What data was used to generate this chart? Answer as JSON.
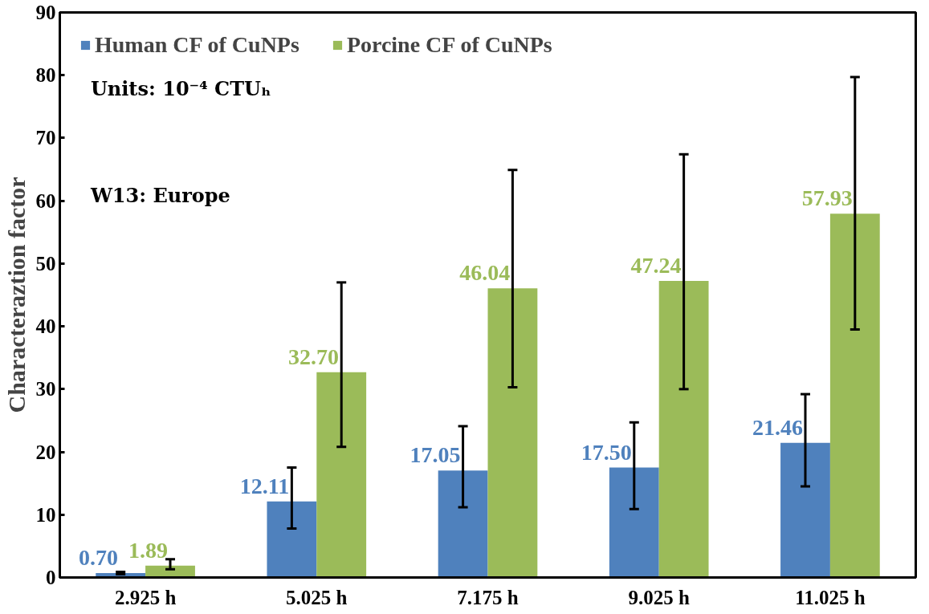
{
  "chart_data": {
    "type": "bar",
    "ylabel": "Characteraztion factor",
    "categories": [
      "2.925 h",
      "5.025 h",
      "7.175 h",
      "9.025 h",
      "11.025 h"
    ],
    "series": [
      {
        "name": "Human CF of CuNPs",
        "color": "#4f81bd",
        "values": [
          0.7,
          12.11,
          17.05,
          17.5,
          21.46
        ],
        "value_labels": [
          "0.70",
          "12.11",
          "17.05",
          "17.50",
          "21.46"
        ],
        "errors": [
          [
            0.5,
            0.9
          ],
          [
            7.8,
            17.5
          ],
          [
            11.2,
            24.1
          ],
          [
            10.9,
            24.7
          ],
          [
            14.5,
            29.2
          ]
        ]
      },
      {
        "name": "Porcine CF of CuNPs",
        "color": "#9bbb59",
        "values": [
          1.89,
          32.7,
          46.04,
          47.24,
          57.93
        ],
        "value_labels": [
          "1.89",
          "32.70",
          "46.04",
          "47.24",
          "57.93"
        ],
        "errors": [
          [
            1.3,
            2.9
          ],
          [
            20.8,
            47.0
          ],
          [
            30.3,
            64.9
          ],
          [
            30.0,
            67.4
          ],
          [
            39.5,
            79.7
          ]
        ]
      }
    ],
    "ylim": [
      0,
      90
    ],
    "yticks": [
      0,
      10,
      20,
      30,
      40,
      50,
      60,
      70,
      80,
      90
    ],
    "grid": false,
    "legend": "top left",
    "annotations": [
      "Units: 10⁻⁴ CTUₕ",
      "W13: Europe"
    ]
  }
}
